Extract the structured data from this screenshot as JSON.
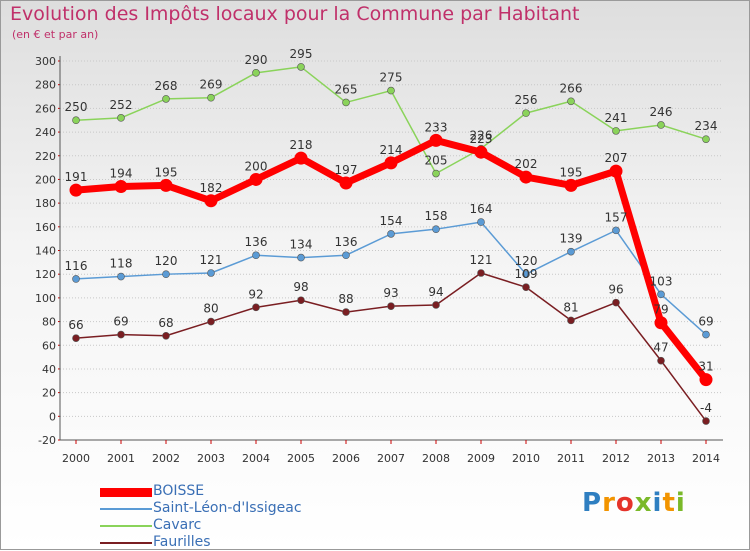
{
  "header": {
    "title": "Evolution des Impôts locaux pour la Commune par Habitant",
    "subtitle": "(en € et par an)"
  },
  "logo": {
    "text": "Proxiti",
    "letters": [
      "P",
      "r",
      "o",
      "x",
      "i",
      "t",
      "i"
    ],
    "colors": [
      "#2f7fc1",
      "#f29400",
      "#e5332a",
      "#7ab929",
      "#2f7fc1",
      "#f29400",
      "#7ab929"
    ]
  },
  "chart_data": {
    "type": "line",
    "title": "Evolution des Impôts locaux pour la Commune par Habitant",
    "subtitle": "(en € et par an)",
    "x": [
      "2000",
      "2001",
      "2002",
      "2003",
      "2004",
      "2005",
      "2006",
      "2007",
      "2008",
      "2009",
      "2010",
      "2011",
      "2012",
      "2013",
      "2014"
    ],
    "ylim": [
      -20,
      300
    ],
    "yticks": [
      -20,
      0,
      20,
      40,
      60,
      80,
      100,
      120,
      140,
      160,
      180,
      200,
      220,
      240,
      260,
      280,
      300
    ],
    "grid": "horizontal",
    "legend_position": "bottom-left",
    "series": [
      {
        "name": "BOISSE",
        "color": "#ff0000",
        "width": 7,
        "marker": 6,
        "values": [
          191,
          194,
          195,
          182,
          200,
          218,
          197,
          214,
          233,
          223,
          202,
          195,
          207,
          79,
          31
        ]
      },
      {
        "name": "Saint-Léon-d'Issigeac",
        "color": "#5b9bd5",
        "width": 1.5,
        "marker": 3.5,
        "values": [
          116,
          118,
          120,
          121,
          136,
          134,
          136,
          154,
          158,
          164,
          120,
          139,
          157,
          103,
          69
        ]
      },
      {
        "name": "Cavarc",
        "color": "#8ad35a",
        "width": 1.5,
        "marker": 3.5,
        "values": [
          250,
          252,
          268,
          269,
          290,
          295,
          265,
          275,
          205,
          226,
          256,
          266,
          241,
          246,
          234
        ]
      },
      {
        "name": "Faurilles",
        "color": "#7a1e22",
        "width": 1.5,
        "marker": 3.5,
        "values": [
          66,
          69,
          68,
          80,
          92,
          98,
          88,
          93,
          94,
          121,
          109,
          81,
          96,
          47,
          -4
        ]
      }
    ]
  }
}
